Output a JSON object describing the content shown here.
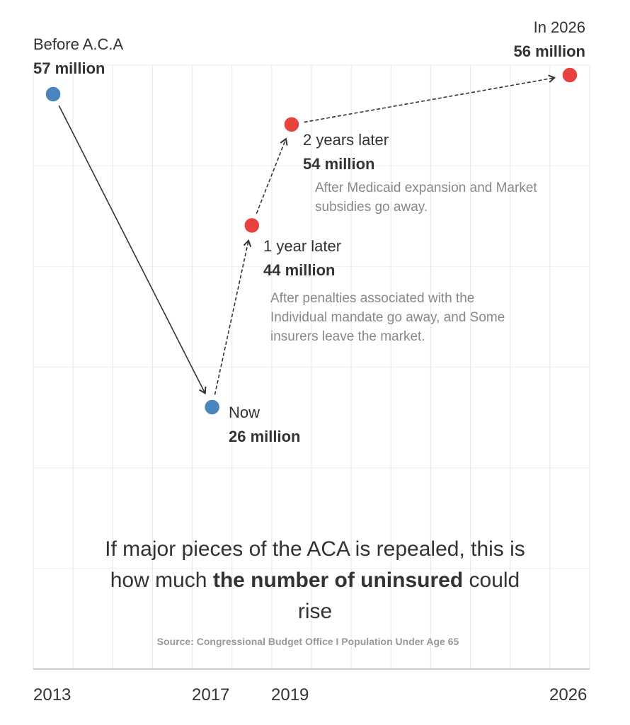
{
  "chart_data": {
    "type": "line",
    "title_parts": [
      "If major pieces of the ACA is repealed, this is how much ",
      "the number of uninsured",
      " could rise"
    ],
    "source": "Source: Congressional Budget Office I Population Under Age 65",
    "x_tick_labels": [
      "2013",
      "2017",
      "2019",
      "2026"
    ],
    "grid": true,
    "unit": "million uninsured",
    "points": [
      {
        "year": 2013,
        "value": 57,
        "label": "Before A.C.A",
        "value_label": "57 million",
        "color": "#4a86be",
        "note": ""
      },
      {
        "year": 2017,
        "value": 26,
        "label": "Now",
        "value_label": "26 million",
        "color": "#4a86be",
        "note": ""
      },
      {
        "year": 2018,
        "value": 44,
        "label": "1 year later",
        "value_label": "44 million",
        "color": "#e8423f",
        "note": "After penalties associated with the Individual mandate go away, and Some insurers leave the market."
      },
      {
        "year": 2019,
        "value": 54,
        "label": "2 years later",
        "value_label": "54 million",
        "color": "#e8423f",
        "note": "After Medicaid expansion and Market subsidies go away."
      },
      {
        "year": 2026,
        "value": 56,
        "label": "In 2026",
        "value_label": "56 million",
        "color": "#e8423f",
        "note": ""
      }
    ]
  }
}
